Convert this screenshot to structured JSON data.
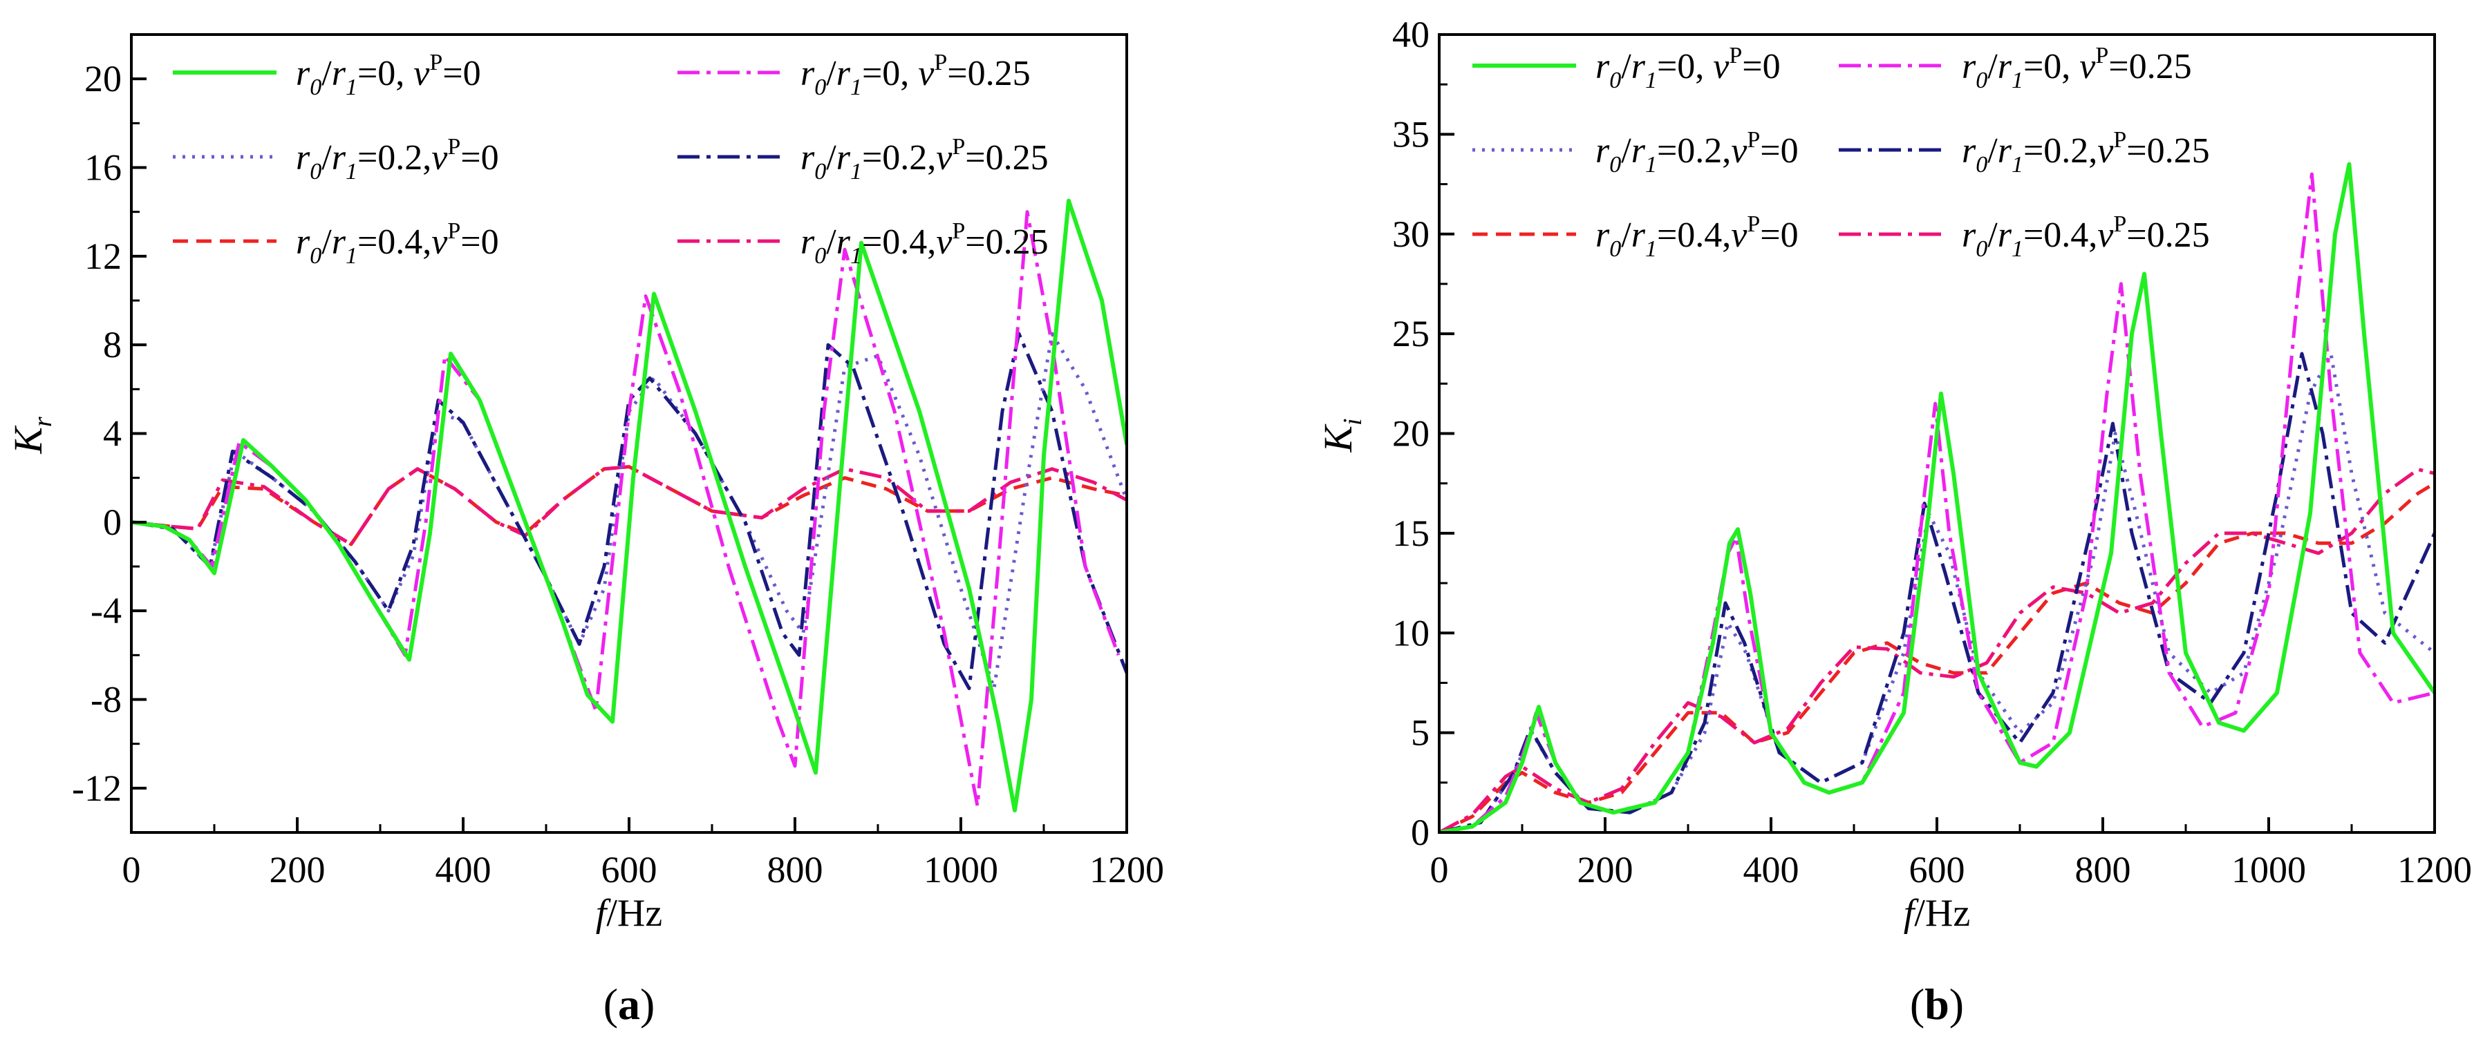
{
  "colors": {
    "r0_nu0": "#22ee22",
    "r2_nu0": "#6a5acd",
    "r4_nu0": "#ee2222",
    "r0_nu25": "#ee22ee",
    "r2_nu25": "#1a1a80",
    "r4_nu25": "#ee1177"
  },
  "legend_entries": [
    {
      "key": "r0_nu0",
      "ratio": "0,",
      "nu": "0",
      "dash": "solid"
    },
    {
      "key": "r0_nu25",
      "ratio": "0,",
      "nu": "0.25",
      "dash": "dashdot"
    },
    {
      "key": "r2_nu0",
      "ratio": "0.2,",
      "nu": "0",
      "dash": "dot"
    },
    {
      "key": "r2_nu25",
      "ratio": "0.2,",
      "nu": "0.25",
      "dash": "dashdot"
    },
    {
      "key": "r4_nu0",
      "ratio": "0.4,",
      "nu": "0",
      "dash": "dash"
    },
    {
      "key": "r4_nu25",
      "ratio": "0.4,",
      "nu": "0.25",
      "dash": "dashdot"
    }
  ],
  "chart_data": [
    {
      "type": "line",
      "panel_label": "a",
      "xlabel": "f/Hz",
      "ylabel": "K_r",
      "ylabel_main": "K",
      "ylabel_sub": "r",
      "xlabel_main": "f",
      "xlabel_unit": "/Hz",
      "xlim": [
        0,
        1200
      ],
      "ylim": [
        -14,
        22
      ],
      "xticks": [
        0,
        200,
        400,
        600,
        800,
        1000,
        1200
      ],
      "yticks": [
        -12,
        -8,
        -4,
        0,
        4,
        8,
        12,
        16,
        20
      ],
      "xtick_labels": [
        "0",
        "200",
        "400",
        "600",
        "800",
        "1000",
        "1200"
      ],
      "ytick_labels": [
        "-12",
        "-8",
        "-4",
        "0",
        "4",
        "8",
        "12",
        "16",
        "20"
      ],
      "legend_position": "top-left",
      "series": [
        {
          "key": "r0_nu0",
          "name": "r0/r1=0, vP=0",
          "x": [
            0,
            40,
            70,
            100,
            135,
            170,
            210,
            250,
            290,
            335,
            360,
            385,
            420,
            470,
            520,
            550,
            580,
            605,
            630,
            680,
            740,
            800,
            825,
            855,
            880,
            950,
            1010,
            1045,
            1065,
            1085,
            1100,
            1130,
            1170,
            1200
          ],
          "y": [
            0,
            -0.2,
            -0.8,
            -2.3,
            3.7,
            2.5,
            1.0,
            -1.0,
            -3.5,
            -6.2,
            -0.5,
            7.6,
            5.5,
            0.5,
            -4.5,
            -7.8,
            -9.0,
            2.0,
            10.3,
            5.0,
            -2.0,
            -8.5,
            -11.3,
            2.0,
            12.6,
            5.0,
            -3.0,
            -9.0,
            -13.0,
            -8.0,
            3.0,
            14.5,
            10.0,
            3.5
          ]
        },
        {
          "key": "r0_nu25",
          "name": "r0/r1=0, vP=0.25",
          "x": [
            0,
            40,
            70,
            97,
            130,
            170,
            210,
            250,
            290,
            330,
            355,
            378,
            420,
            470,
            520,
            560,
            600,
            620,
            660,
            720,
            780,
            800,
            835,
            860,
            920,
            980,
            1020,
            1045,
            1080,
            1110,
            1150,
            1190
          ],
          "y": [
            0,
            -0.2,
            -0.8,
            -2.0,
            3.6,
            2.5,
            1.0,
            -1.0,
            -3.5,
            -6.0,
            0,
            7.5,
            5.5,
            0.5,
            -4.5,
            -8.5,
            5.0,
            10.2,
            6.0,
            -2.0,
            -9.0,
            -11.0,
            5.0,
            12.3,
            5.0,
            -5.0,
            -12.8,
            -2.0,
            14.0,
            8.0,
            -2.0,
            -6.0
          ]
        },
        {
          "key": "r2_nu0",
          "name": "r0/r1=0.2, vP=0",
          "x": [
            0,
            50,
            95,
            125,
            170,
            220,
            270,
            310,
            340,
            370,
            400,
            450,
            500,
            540,
            570,
            600,
            630,
            680,
            740,
            790,
            810,
            860,
            900,
            950,
            1000,
            1040,
            1080,
            1110,
            1150,
            1200
          ],
          "y": [
            0,
            -0.3,
            -2.0,
            3.2,
            2.0,
            0.5,
            -1.8,
            -4.0,
            -1.5,
            5.0,
            4.5,
            1.0,
            -2.5,
            -5.5,
            -3.0,
            5.0,
            6.5,
            4.0,
            0.0,
            -4.0,
            -5.0,
            7.0,
            7.5,
            3.0,
            -3.0,
            -7.5,
            2.0,
            8.5,
            6.0,
            1.0
          ]
        },
        {
          "key": "r2_nu25",
          "name": "r0/r1=0.2, vP=0.25",
          "x": [
            0,
            50,
            95,
            122,
            170,
            220,
            270,
            310,
            340,
            370,
            400,
            450,
            500,
            540,
            570,
            600,
            625,
            680,
            740,
            785,
            805,
            840,
            870,
            930,
            980,
            1010,
            1050,
            1070,
            1110,
            1150,
            1200
          ],
          "y": [
            0,
            -0.3,
            -2.0,
            3.2,
            2.0,
            0.5,
            -1.8,
            -4.0,
            -1.0,
            5.5,
            4.5,
            1.0,
            -2.5,
            -5.5,
            -2.0,
            5.5,
            6.5,
            4.0,
            0.0,
            -5.0,
            -6.0,
            8.0,
            7.0,
            0.5,
            -5.5,
            -7.5,
            5.0,
            8.5,
            5.0,
            -2.0,
            -6.8
          ]
        },
        {
          "key": "r4_nu0",
          "name": "r0/r1=0.4, vP=0",
          "x": [
            0,
            50,
            80,
            110,
            160,
            220,
            265,
            310,
            345,
            390,
            440,
            475,
            520,
            570,
            600,
            650,
            700,
            760,
            810,
            860,
            910,
            960,
            1010,
            1060,
            1110,
            1160,
            1200
          ],
          "y": [
            0,
            -0.2,
            -0.3,
            1.6,
            1.5,
            0.0,
            -1.0,
            1.5,
            2.4,
            1.5,
            0.0,
            -0.5,
            1.0,
            2.4,
            2.5,
            1.5,
            0.5,
            0.2,
            1.2,
            2.0,
            1.5,
            0.5,
            0.5,
            1.5,
            2.0,
            1.5,
            1.2
          ]
        },
        {
          "key": "r4_nu25",
          "name": "r0/r1=0.4, vP=0.25",
          "x": [
            0,
            50,
            80,
            110,
            160,
            220,
            265,
            310,
            345,
            390,
            440,
            475,
            520,
            570,
            600,
            650,
            700,
            760,
            810,
            860,
            910,
            960,
            1010,
            1060,
            1110,
            1160,
            1200
          ],
          "y": [
            0,
            -0.2,
            -0.3,
            1.9,
            1.6,
            0.0,
            -1.0,
            1.5,
            2.4,
            1.5,
            0.0,
            -0.6,
            1.0,
            2.4,
            2.5,
            1.5,
            0.5,
            0.2,
            1.5,
            2.4,
            2.0,
            0.5,
            0.5,
            1.8,
            2.4,
            1.8,
            1.0
          ]
        }
      ]
    },
    {
      "type": "line",
      "panel_label": "b",
      "xlabel": "f/Hz",
      "ylabel": "K_i",
      "ylabel_main": "K",
      "ylabel_sub": "i",
      "xlabel_main": "f",
      "xlabel_unit": "/Hz",
      "xlim": [
        0,
        1200
      ],
      "ylim": [
        0,
        40
      ],
      "xticks": [
        0,
        200,
        400,
        600,
        800,
        1000,
        1200
      ],
      "yticks": [
        0,
        5,
        10,
        15,
        20,
        25,
        30,
        35,
        40
      ],
      "xtick_labels": [
        "0",
        "200",
        "400",
        "600",
        "800",
        "1000",
        "1200"
      ],
      "ytick_labels": [
        "0",
        "5",
        "10",
        "15",
        "20",
        "25",
        "30",
        "35",
        "40"
      ],
      "legend_position": "top-left",
      "series": [
        {
          "key": "r0_nu0",
          "name": "r0/r1=0, vP=0",
          "x": [
            0,
            40,
            80,
            100,
            120,
            140,
            170,
            210,
            260,
            300,
            330,
            350,
            360,
            375,
            400,
            440,
            470,
            510,
            560,
            590,
            605,
            620,
            650,
            700,
            720,
            760,
            810,
            835,
            850,
            870,
            900,
            940,
            970,
            1010,
            1050,
            1080,
            1097,
            1115,
            1150,
            1200
          ],
          "y": [
            0,
            0.3,
            1.5,
            3.5,
            6.3,
            3.5,
            1.5,
            1.0,
            1.5,
            4.0,
            9.5,
            14.5,
            15.2,
            12.0,
            5.0,
            2.5,
            2.0,
            2.5,
            6.0,
            16.0,
            22.0,
            18.0,
            8.0,
            3.5,
            3.3,
            5.0,
            14.0,
            25.0,
            28.0,
            20.0,
            9.0,
            5.5,
            5.1,
            7.0,
            16.0,
            30.0,
            33.5,
            25.0,
            10.0,
            7.0
          ]
        },
        {
          "key": "r0_nu25",
          "name": "r0/r1=0, vP=0.25",
          "x": [
            0,
            40,
            80,
            100,
            117,
            140,
            170,
            210,
            260,
            300,
            330,
            348,
            358,
            372,
            400,
            440,
            470,
            510,
            560,
            585,
            598,
            615,
            650,
            700,
            740,
            780,
            805,
            822,
            845,
            880,
            920,
            960,
            1000,
            1035,
            1052,
            1075,
            1110,
            1150,
            1200
          ],
          "y": [
            0,
            0.3,
            1.8,
            3.8,
            6.0,
            3.5,
            1.5,
            1.0,
            1.5,
            4.0,
            10.0,
            14.0,
            14.8,
            11.0,
            5.0,
            2.5,
            2.0,
            2.5,
            7.0,
            17.0,
            21.5,
            15.0,
            7.0,
            3.5,
            4.5,
            12.0,
            22.0,
            27.5,
            18.0,
            8.0,
            5.3,
            6.0,
            12.0,
            27.0,
            33.0,
            22.0,
            9.0,
            6.5,
            7.0
          ]
        },
        {
          "key": "r2_nu0",
          "name": "r0/r1=0.2, vP=0",
          "x": [
            0,
            50,
            90,
            112,
            140,
            180,
            230,
            280,
            320,
            348,
            370,
            410,
            460,
            510,
            560,
            590,
            615,
            650,
            700,
            740,
            790,
            815,
            840,
            880,
            930,
            970,
            1010,
            1050,
            1075,
            1100,
            1140,
            1200
          ],
          "y": [
            0,
            0.5,
            3.0,
            5.0,
            3.0,
            1.2,
            1.0,
            2.0,
            5.0,
            10.5,
            9.0,
            4.0,
            2.5,
            3.5,
            9.0,
            16.0,
            14.0,
            8.0,
            5.0,
            6.5,
            14.0,
            20.0,
            16.0,
            9.0,
            7.0,
            8.0,
            14.0,
            22.0,
            24.0,
            18.0,
            11.0,
            9.0
          ]
        },
        {
          "key": "r2_nu25",
          "name": "r0/r1=0.2, vP=0.25",
          "x": [
            0,
            50,
            90,
            110,
            140,
            180,
            230,
            280,
            320,
            345,
            368,
            410,
            460,
            510,
            560,
            585,
            610,
            650,
            700,
            740,
            790,
            812,
            835,
            880,
            930,
            970,
            1010,
            1040,
            1065,
            1100,
            1140,
            1200
          ],
          "y": [
            0,
            0.5,
            3.0,
            5.2,
            3.0,
            1.2,
            1.0,
            2.0,
            5.5,
            11.5,
            9.5,
            4.0,
            2.5,
            3.5,
            10.0,
            16.5,
            13.0,
            7.0,
            4.5,
            7.0,
            16.0,
            20.5,
            15.0,
            8.0,
            6.5,
            9.0,
            17.0,
            24.0,
            20.0,
            11.0,
            9.5,
            15.0
          ]
        },
        {
          "key": "r4_nu0",
          "name": "r0/r1=0.4, vP=0",
          "x": [
            0,
            40,
            80,
            100,
            140,
            180,
            220,
            260,
            300,
            340,
            380,
            420,
            460,
            500,
            540,
            580,
            620,
            660,
            700,
            740,
            780,
            820,
            860,
            900,
            940,
            980,
            1020,
            1060,
            1100,
            1140,
            1180,
            1200
          ],
          "y": [
            0,
            0.8,
            2.5,
            3.0,
            2.0,
            1.5,
            2.0,
            4.0,
            6.0,
            6.0,
            4.5,
            5.0,
            7.0,
            9.0,
            9.5,
            8.5,
            8.0,
            8.0,
            10.0,
            12.0,
            12.5,
            11.5,
            11.0,
            12.5,
            14.5,
            15.0,
            15.0,
            14.5,
            14.5,
            15.5,
            17.0,
            17.5
          ]
        },
        {
          "key": "r4_nu25",
          "name": "r0/r1=0.4, vP=0.25",
          "x": [
            0,
            40,
            80,
            100,
            140,
            180,
            220,
            260,
            300,
            340,
            380,
            420,
            460,
            500,
            540,
            580,
            620,
            660,
            700,
            740,
            780,
            820,
            860,
            900,
            940,
            980,
            1020,
            1060,
            1100,
            1140,
            1180,
            1200
          ],
          "y": [
            0,
            0.9,
            2.8,
            3.3,
            2.2,
            1.5,
            2.2,
            4.5,
            6.5,
            5.8,
            4.5,
            5.2,
            7.5,
            9.3,
            9.2,
            8.0,
            7.8,
            8.5,
            11.0,
            12.3,
            12.0,
            11.0,
            11.5,
            13.5,
            15.0,
            15.0,
            14.5,
            14.0,
            15.0,
            17.0,
            18.2,
            18.0
          ]
        }
      ]
    }
  ]
}
